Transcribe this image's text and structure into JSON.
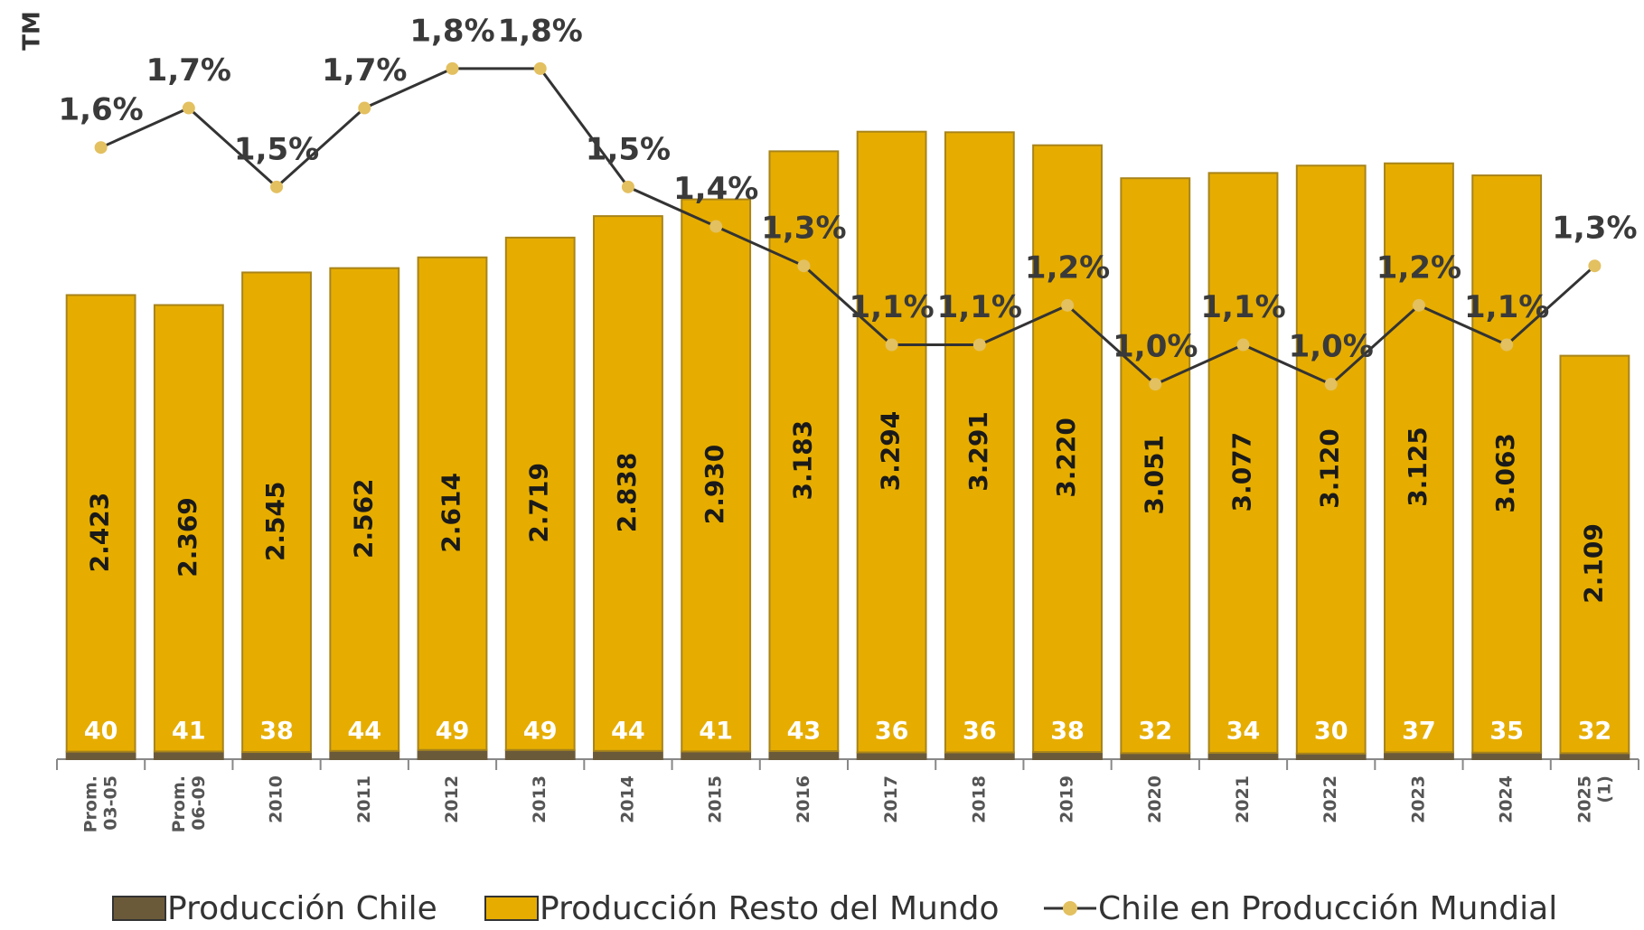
{
  "chart_data": {
    "type": "bar",
    "stacked": true,
    "y_label": "TM",
    "categories": [
      "Prom. 03-05",
      "Prom. 06-09",
      "2010",
      "2011",
      "2012",
      "2013",
      "2014",
      "2015",
      "2016",
      "2017",
      "2018",
      "2019",
      "2020",
      "2021",
      "2022",
      "2023",
      "2024",
      "2025 (1)"
    ],
    "ylim": [
      0,
      4000
    ],
    "y2lim": [
      0.05,
      1.96
    ],
    "legend": "bottom",
    "series": [
      {
        "name": "Producción Chile",
        "type": "bar",
        "color": "#6b5a3a",
        "values": [
          40,
          41,
          38,
          44,
          49,
          49,
          44,
          41,
          43,
          36,
          36,
          38,
          32,
          34,
          30,
          37,
          35,
          32
        ]
      },
      {
        "name": "Producción Resto del Mundo",
        "type": "bar",
        "color": "#e6ad00",
        "values": [
          2423,
          2369,
          2545,
          2562,
          2614,
          2719,
          2838,
          2930,
          3183,
          3294,
          3291,
          3220,
          3051,
          3077,
          3120,
          3125,
          3063,
          2109
        ],
        "value_labels": [
          "2.423",
          "2.369",
          "2.545",
          "2.562",
          "2.614",
          "2.719",
          "2.838",
          "2.930",
          "3.183",
          "3.294",
          "3.291",
          "3.220",
          "3.051",
          "3.077",
          "3.120",
          "3.125",
          "3.063",
          "2.109"
        ]
      },
      {
        "name": "Chile en Producción Mundial",
        "type": "line",
        "axis": "y2",
        "color": "#333333",
        "marker_color": "#e3c060",
        "values": [
          1.6,
          1.7,
          1.5,
          1.7,
          1.8,
          1.8,
          1.5,
          1.4,
          1.3,
          1.1,
          1.1,
          1.2,
          1.0,
          1.1,
          1.0,
          1.2,
          1.1,
          1.3
        ],
        "value_labels": [
          "1,6%",
          "1,7%",
          "1,5%",
          "1,7%",
          "1,8%",
          "1,8%",
          "1,5%",
          "1,4%",
          "1,3%",
          "1,1%",
          "1,1%",
          "1,2%",
          "1,0%",
          "1,1%",
          "1,0%",
          "1,2%",
          "1,1%",
          "1,3%"
        ]
      }
    ]
  }
}
